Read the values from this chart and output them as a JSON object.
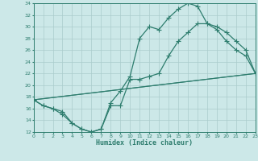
{
  "xlabel": "Humidex (Indice chaleur)",
  "ylabel": "",
  "xlim": [
    0,
    23
  ],
  "ylim": [
    12,
    34
  ],
  "yticks": [
    12,
    14,
    16,
    18,
    20,
    22,
    24,
    26,
    28,
    30,
    32,
    34
  ],
  "xticks": [
    0,
    1,
    2,
    3,
    4,
    5,
    6,
    7,
    8,
    9,
    10,
    11,
    12,
    13,
    14,
    15,
    16,
    17,
    18,
    19,
    20,
    21,
    22,
    23
  ],
  "background_color": "#cce8e8",
  "grid_color": "#aacccc",
  "line_color": "#2e7d6e",
  "line1_x": [
    0,
    1,
    2,
    3,
    4,
    5,
    6,
    7,
    8,
    9,
    10,
    11,
    12,
    13,
    14,
    15,
    16,
    17,
    18,
    19,
    20,
    21,
    22,
    23
  ],
  "line1_y": [
    17.5,
    16.5,
    16.0,
    15.5,
    13.5,
    12.5,
    12.0,
    12.5,
    16.5,
    16.5,
    21.0,
    21.0,
    21.5,
    22.0,
    25.0,
    27.5,
    29.0,
    30.5,
    30.5,
    29.5,
    27.5,
    26.0,
    25.0,
    22.0
  ],
  "line2_x": [
    0,
    1,
    2,
    3,
    4,
    5,
    6,
    7,
    8,
    9,
    10,
    11,
    12,
    13,
    14,
    15,
    16,
    17,
    18,
    19,
    20,
    21,
    22,
    23
  ],
  "line2_y": [
    17.5,
    16.5,
    16.0,
    15.0,
    13.5,
    12.5,
    12.0,
    12.5,
    17.0,
    19.0,
    21.5,
    28.0,
    30.0,
    29.5,
    31.5,
    33.0,
    34.0,
    33.5,
    30.5,
    30.0,
    29.0,
    27.5,
    26.0,
    22.0
  ],
  "line3_x": [
    0,
    23
  ],
  "line3_y": [
    17.5,
    22.0
  ],
  "line4_x": [
    0,
    23
  ],
  "line4_y": [
    17.5,
    22.0
  ]
}
